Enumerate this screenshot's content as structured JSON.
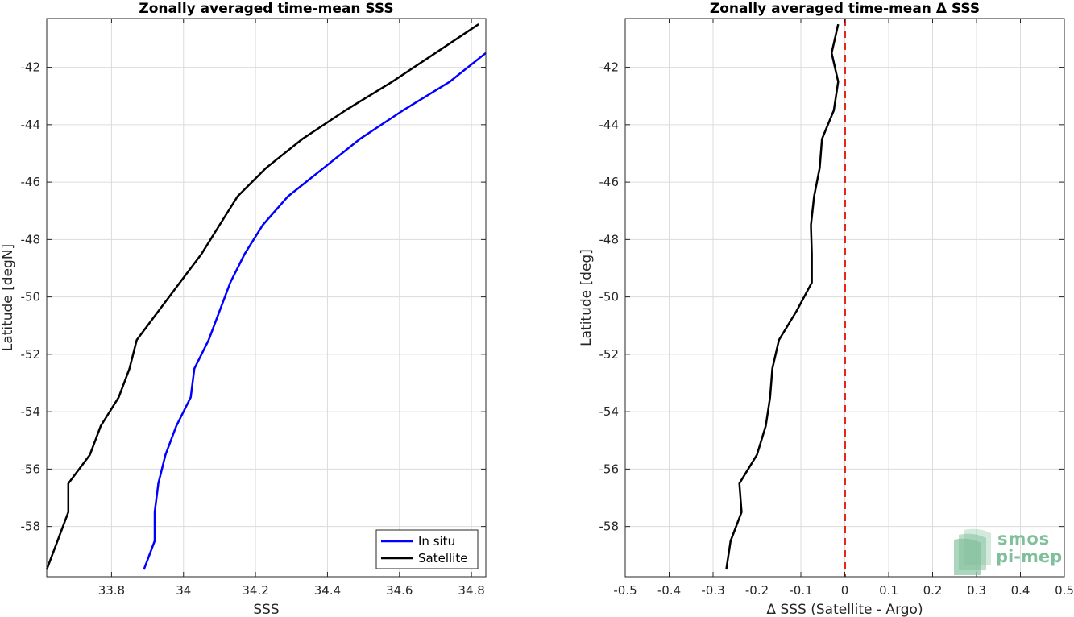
{
  "chart_data": [
    {
      "type": "line",
      "title": "Zonally averaged time-mean SSS",
      "xlabel": "SSS",
      "ylabel": "Latitude [degN]",
      "xlim": [
        33.62,
        34.84
      ],
      "ylim": [
        -59.75,
        -40.3
      ],
      "xticks": [
        33.8,
        34,
        34.2,
        34.4,
        34.6,
        34.8
      ],
      "xtick_labels": [
        "33.8",
        "34",
        "34.2",
        "34.4",
        "34.6",
        "34.8"
      ],
      "yticks": [
        -58,
        -56,
        -54,
        -52,
        -50,
        -48,
        -46,
        -44,
        -42
      ],
      "ytick_labels": [
        "-58",
        "-56",
        "-54",
        "-52",
        "-50",
        "-48",
        "-46",
        "-44",
        "-42"
      ],
      "grid": true,
      "legend": "bottom-right",
      "series": [
        {
          "name": "In situ",
          "color": "#0000ff",
          "x": [
            33.89,
            33.92,
            33.92,
            33.93,
            33.95,
            33.98,
            34.02,
            34.03,
            34.07,
            34.13,
            34.17,
            34.22,
            34.29,
            34.39,
            34.49,
            34.61,
            34.74,
            34.84
          ],
          "y": [
            -59.5,
            -58.5,
            -57.5,
            -56.5,
            -55.5,
            -54.5,
            -53.5,
            -52.5,
            -51.5,
            -49.5,
            -48.5,
            -47.5,
            -46.5,
            -45.5,
            -44.5,
            -43.5,
            -42.5,
            -41.5
          ]
        },
        {
          "name": "Satellite",
          "color": "#000000",
          "x": [
            33.62,
            33.65,
            33.68,
            33.68,
            33.74,
            33.77,
            33.82,
            33.85,
            33.87,
            33.93,
            33.99,
            34.05,
            34.1,
            34.15,
            34.23,
            34.33,
            34.45,
            34.58,
            34.7,
            34.82
          ],
          "y": [
            -59.5,
            -58.5,
            -57.5,
            -56.5,
            -55.5,
            -54.5,
            -53.5,
            -52.5,
            -51.5,
            -50.5,
            -49.5,
            -48.5,
            -47.5,
            -46.5,
            -45.5,
            -44.5,
            -43.5,
            -42.5,
            -41.5,
            -40.5
          ]
        }
      ]
    },
    {
      "type": "line",
      "title": "Zonally averaged time-mean Δ SSS",
      "xlabel": "Δ SSS (Satellite - Argo)",
      "ylabel": "Latitude [deg]",
      "xlim": [
        -0.5,
        0.5
      ],
      "ylim": [
        -59.75,
        -40.3
      ],
      "xticks": [
        -0.5,
        -0.4,
        -0.3,
        -0.2,
        -0.1,
        0,
        0.1,
        0.2,
        0.3,
        0.4,
        0.5
      ],
      "xtick_labels": [
        "-0.5",
        "-0.4",
        "-0.3",
        "-0.2",
        "-0.1",
        "0",
        "0.1",
        "0.2",
        "0.3",
        "0.4",
        "0.5"
      ],
      "yticks": [
        -58,
        -56,
        -54,
        -52,
        -50,
        -48,
        -46,
        -44,
        -42
      ],
      "ytick_labels": [
        "-58",
        "-56",
        "-54",
        "-52",
        "-50",
        "-48",
        "-46",
        "-44",
        "-42"
      ],
      "grid": true,
      "reference_line": {
        "x": 0,
        "color": "#e8261b",
        "style": "dashed"
      },
      "series": [
        {
          "color": "#000000",
          "x": [
            -0.27,
            -0.26,
            -0.235,
            -0.24,
            -0.2,
            -0.18,
            -0.17,
            -0.165,
            -0.15,
            -0.11,
            -0.075,
            -0.075,
            -0.077,
            -0.07,
            -0.057,
            -0.052,
            -0.025,
            -0.015,
            -0.03,
            -0.015
          ],
          "y": [
            -59.5,
            -58.5,
            -57.5,
            -56.5,
            -55.5,
            -54.5,
            -53.5,
            -52.5,
            -51.5,
            -50.5,
            -49.5,
            -48.5,
            -47.5,
            -46.5,
            -45.5,
            -44.5,
            -43.5,
            -42.5,
            -41.5,
            -40.5
          ]
        }
      ]
    }
  ],
  "logo": {
    "line1": "smos",
    "line2": "pi-mep",
    "color": "#7fbf9a"
  }
}
